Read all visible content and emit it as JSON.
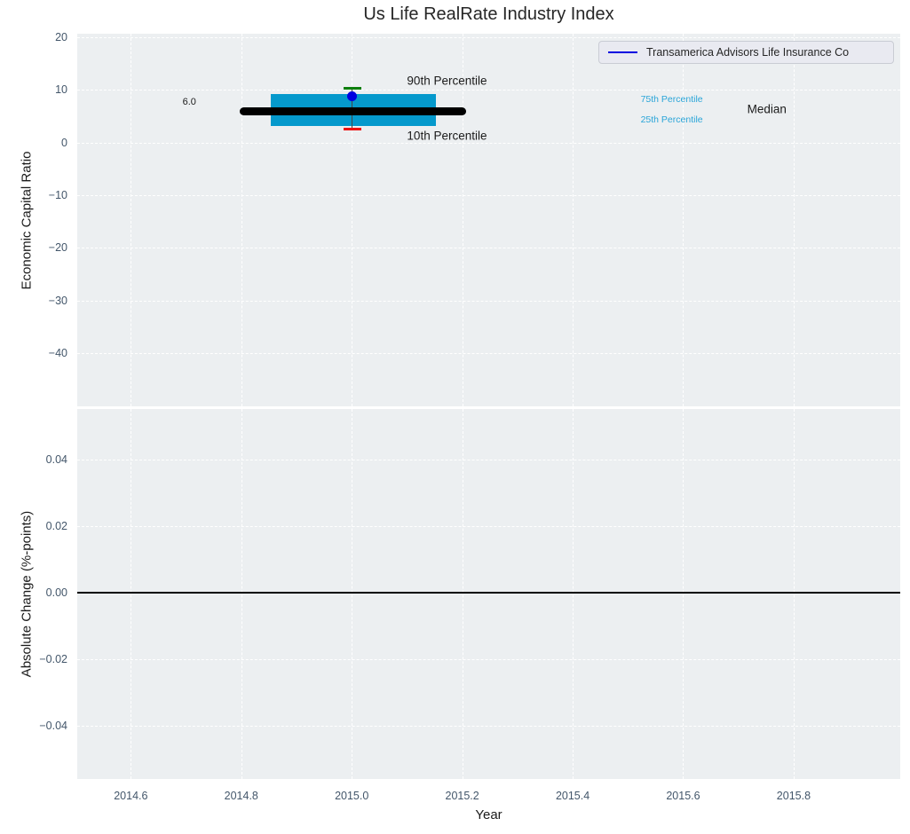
{
  "legend": {
    "label": "Transamerica Advisors Life Insurance Co"
  },
  "colors": {
    "plot_bg": "#eceff1",
    "grid": "#ffffff",
    "tick_label": "#43566a",
    "text": "#1a1a1a",
    "box_fill": "#0599cc",
    "percentile_label": "#2aa5d8",
    "median_line": "#000000",
    "whisker": "#444444",
    "cap_90": "#0d7f0d",
    "cap_10": "#ee1111",
    "company_marker": "#0000e0",
    "zero_line": "#000000"
  },
  "chart_data": [
    {
      "type": "boxplot",
      "title": "Us Life RealRate Industry Index",
      "xlabel": "Year",
      "ylabel": "Economic Capital Ratio",
      "xlim": [
        2014.503,
        2015.993
      ],
      "ylim": [
        -50.1,
        20.7
      ],
      "grid": true,
      "grid_style": "dashed",
      "legend_position": "upper right",
      "x_ticks": [
        {
          "v": 2014.6,
          "label": "2014.6"
        },
        {
          "v": 2014.8,
          "label": "2014.8"
        },
        {
          "v": 2015.0,
          "label": "2015.0"
        },
        {
          "v": 2015.2,
          "label": "2015.2"
        },
        {
          "v": 2015.4,
          "label": "2015.4"
        },
        {
          "v": 2015.6,
          "label": "2015.6"
        },
        {
          "v": 2015.8,
          "label": "2015.8"
        }
      ],
      "y_ticks": [
        {
          "v": 20,
          "label": "20"
        },
        {
          "v": 10,
          "label": "10"
        },
        {
          "v": 0,
          "label": "0"
        },
        {
          "v": -10,
          "label": "−10"
        },
        {
          "v": -20,
          "label": "−20"
        },
        {
          "v": -30,
          "label": "−30"
        },
        {
          "v": -40,
          "label": "−40"
        }
      ],
      "box": {
        "x_center": 2015.0,
        "box_x_range": [
          2014.853,
          2015.152
        ],
        "median_x_range": [
          2014.797,
          2015.207
        ],
        "cap_x_range": [
          2014.985,
          2015.017
        ],
        "p10": 2.5,
        "p25": 3.2,
        "median": 6.0,
        "p75": 9.3,
        "p90": 10.4,
        "median_label": "6.0",
        "company": {
          "name": "Transamerica Advisors Life Insurance Co",
          "x": 2015.0,
          "y": 8.8
        }
      },
      "annotations": [
        {
          "text": "90th Percentile",
          "x": 2015.1,
          "y": 11.8,
          "align": "left",
          "size": 13.5,
          "color": "#1a1a1a"
        },
        {
          "text": "10th Percentile",
          "x": 2015.1,
          "y": 1.3,
          "align": "left",
          "size": 13.5,
          "color": "#1a1a1a"
        },
        {
          "text": "6.0",
          "x": 2014.706,
          "y": 7.8,
          "align": "center",
          "size": 11,
          "color": "#1a1a1a"
        },
        {
          "text": "75th Percentile",
          "x": 2015.523,
          "y": 8.2,
          "align": "left",
          "size": 10.5,
          "color": "#2aa5d8"
        },
        {
          "text": "25th Percentile",
          "x": 2015.523,
          "y": 4.4,
          "align": "left",
          "size": 10.5,
          "color": "#2aa5d8"
        },
        {
          "text": "Median",
          "x": 2015.716,
          "y": 6.4,
          "align": "left",
          "size": 13.5,
          "color": "#1a1a1a"
        }
      ]
    },
    {
      "type": "line",
      "xlabel": "Year",
      "ylabel": "Absolute Change (%-points)",
      "xlim": [
        2014.503,
        2015.993
      ],
      "ylim": [
        -0.056,
        0.0552
      ],
      "grid": true,
      "grid_style": "dashed",
      "y_ticks": [
        {
          "v": 0.04,
          "label": "0.04"
        },
        {
          "v": 0.02,
          "label": "0.02"
        },
        {
          "v": 0.0,
          "label": "0.00"
        },
        {
          "v": -0.02,
          "label": "−0.02"
        },
        {
          "v": -0.04,
          "label": "−0.04"
        }
      ],
      "zero_line": 0.0,
      "series": []
    }
  ]
}
